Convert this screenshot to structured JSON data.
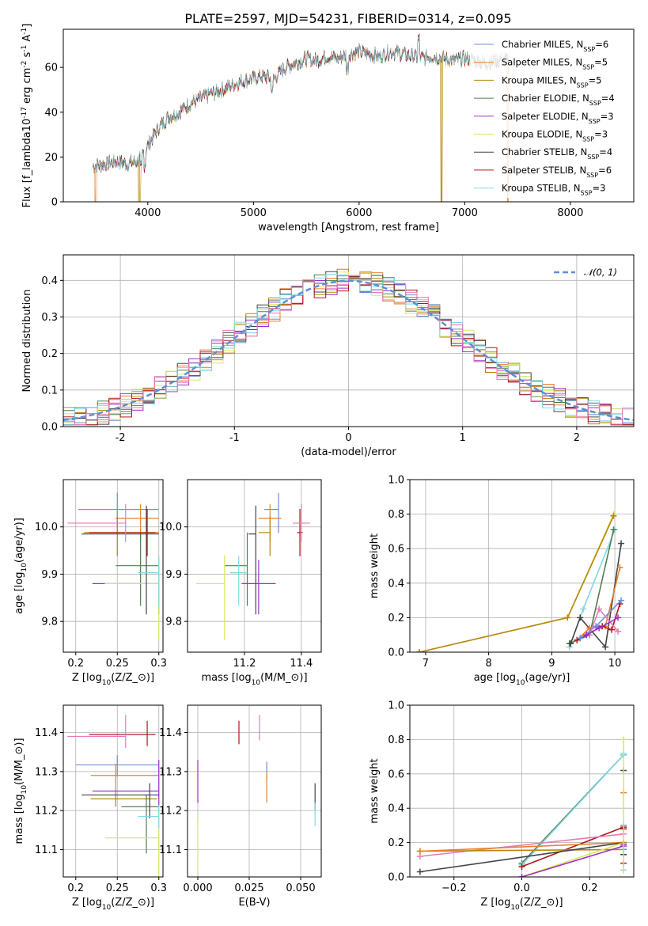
{
  "figure_title": "PLATE=2597, MJD=54231, FIBERID=0314, z=0.095",
  "colors": {
    "Chabrier MILES": "#6a8fd8",
    "Salpeter MILES": "#e8822a",
    "Kroupa MILES": "#b8860b",
    "Chabrier ELODIE": "#4f7f4f",
    "Salpeter ELODIE": "#9b30c8",
    "Kroupa ELODIE": "#d8e860",
    "Chabrier STELIB": "#444444",
    "Salpeter STELIB": "#b01818",
    "Kroupa STELIB": "#80d8e8",
    "extra_pink": "#e87ab8",
    "normal_curve": "#5b8fd8"
  },
  "chart_data": [
    {
      "id": "spectrum",
      "type": "line",
      "title": "PLATE=2597, MJD=54231, FIBERID=0314, z=0.095",
      "xlabel": "wavelength [Angstrom, rest frame]",
      "ylabel": "Flux [f$_\\lambda$10$^{-17}$ erg cm$^{-2}$ s$^{-1}$ A$^{-1}$]",
      "xlim": [
        3200,
        8600
      ],
      "ylim": [
        0,
        77
      ],
      "xticks": [
        4000,
        5000,
        6000,
        7000,
        8000
      ],
      "yticks": [
        0,
        20,
        40,
        60
      ],
      "legend_position": "upper right",
      "legend": [
        "Chabrier MILES, N_SSP=6",
        "Salpeter MILES, N_SSP=5",
        "Kroupa MILES, N_SSP=5",
        "Chabrier ELODIE, N_SSP=4",
        "Salpeter ELODIE, N_SSP=3",
        "Kroupa ELODIE, N_SSP=3",
        "Chabrier STELIB, N_SSP=4",
        "Salpeter STELIB, N_SSP=6",
        "Kroupa STELIB, N_SSP=3"
      ],
      "continuum": {
        "wavelength": [
          3500,
          3600,
          3700,
          3800,
          3900,
          4000,
          4100,
          4200,
          4300,
          4400,
          4500,
          4600,
          4700,
          4800,
          4900,
          5000,
          5100,
          5200,
          5300,
          5400,
          5500,
          5600,
          5700,
          5800,
          5900,
          6000,
          6100,
          6200,
          6300,
          6400,
          6500,
          6600,
          6700,
          6800,
          6900,
          7000,
          7100,
          7200,
          7300,
          7400
        ],
        "flux": [
          16,
          17,
          18,
          17,
          18,
          25,
          33,
          38,
          40,
          44,
          46,
          48,
          50,
          52,
          54,
          55,
          56,
          55,
          60,
          62,
          64,
          63,
          65,
          64,
          66,
          67,
          66,
          65,
          67,
          66,
          65,
          64,
          65,
          64,
          63,
          64,
          63,
          62,
          63,
          64
        ]
      },
      "dropouts": [
        {
          "series": "Salpeter MILES",
          "wavelength": [
            3500,
            3520
          ]
        },
        {
          "series": "Kroupa MILES",
          "wavelength": [
            3910,
            3930
          ]
        },
        {
          "series": "Kroupa MILES",
          "wavelength": [
            6770,
            6790
          ]
        },
        {
          "series": "Salpeter MILES",
          "wavelength": [
            7400,
            7420
          ]
        }
      ]
    },
    {
      "id": "residuals",
      "type": "line",
      "xlabel": "(data-model)/error",
      "ylabel": "Normed distribution",
      "xlim": [
        -2.5,
        2.5
      ],
      "ylim": [
        0,
        0.47
      ],
      "xticks": [
        -2,
        -1,
        0,
        1,
        2
      ],
      "yticks": [
        0.0,
        0.1,
        0.2,
        0.3,
        0.4
      ],
      "legend": [
        "$\\mathcal{N}(0,1)$"
      ],
      "legend_position": "upper right",
      "normal_curve": "standard normal pdf, dashed",
      "histogram_bin_width": 0.1
    },
    {
      "id": "age_vs_Z",
      "type": "scatter",
      "xlabel": "Z [log$_{10}$($Z/Z_\\odot$)]",
      "ylabel": "age  [log$_{10}$($age/yr$)]",
      "xlim": [
        0.185,
        0.305
      ],
      "ylim": [
        9.735,
        10.1
      ],
      "xticks": [
        0.2,
        0.25,
        0.3
      ],
      "yticks": [
        9.8,
        9.9,
        10.0
      ],
      "points": [
        {
          "series": "Chabrier MILES",
          "x": 0.25,
          "xerr": [
            0.047,
            0.05
          ],
          "y": 10.037,
          "yerr": [
            0.05,
            0.035
          ]
        },
        {
          "series": "Salpeter MILES",
          "x": 0.278,
          "xerr": [
            0.03,
            0.022
          ],
          "y": 10.018,
          "yerr": [
            0.05,
            0.03
          ]
        },
        {
          "series": "Kroupa MILES",
          "x": 0.25,
          "xerr": [
            0.04,
            0.05
          ],
          "y": 9.988,
          "yerr": [
            0.05,
            0.035
          ]
        },
        {
          "series": "Chabrier ELODIE",
          "x": 0.278,
          "xerr": [
            0.03,
            0.022
          ],
          "y": 9.918,
          "yerr": [
            0.085,
            0.07
          ]
        },
        {
          "series": "Salpeter ELODIE",
          "x": 0.3,
          "xerr": [
            0.08,
            0.0
          ],
          "y": 9.88,
          "yerr": [
            0.065,
            0.05
          ]
        },
        {
          "series": "Kroupa ELODIE",
          "x": 0.3,
          "xerr": [
            0.065,
            0.0
          ],
          "y": 9.88,
          "yerr": [
            0.12,
            0.06
          ]
        },
        {
          "series": "Chabrier STELIB",
          "x": 0.285,
          "xerr": [
            0.078,
            0.015
          ],
          "y": 9.985,
          "yerr": [
            0.17,
            0.06
          ]
        },
        {
          "series": "Salpeter STELIB",
          "x": 0.286,
          "xerr": [
            0.07,
            0.01
          ],
          "y": 9.988,
          "yerr": [
            0.05,
            0.05
          ]
        },
        {
          "series": "Kroupa STELIB",
          "x": 0.3,
          "xerr": [
            0.025,
            0.0
          ],
          "y": 9.903,
          "yerr": [
            0.07,
            0.035
          ]
        },
        {
          "series": "extra_pink",
          "x": 0.26,
          "xerr": [
            0.07,
            0.0
          ],
          "y": 10.008,
          "yerr": [
            0.04,
            0.04
          ]
        }
      ]
    },
    {
      "id": "age_vs_mass",
      "type": "scatter",
      "xlabel": "mass [log$_{10}$($M/M_\\odot$)]",
      "xlim": [
        11.0,
        11.47
      ],
      "ylim": [
        9.735,
        10.1
      ],
      "xticks": [
        11.2,
        11.4
      ],
      "yticks": [
        9.8,
        9.9,
        10.0
      ],
      "points": [
        {
          "series": "Chabrier MILES",
          "x": 11.32,
          "xerr": [
            0.05,
            0.0
          ],
          "y": 10.037,
          "yerr": [
            0.05,
            0.035
          ]
        },
        {
          "series": "Salpeter MILES",
          "x": 11.29,
          "xerr": [
            0.04,
            0.04
          ],
          "y": 10.018,
          "yerr": [
            0.05,
            0.03
          ]
        },
        {
          "series": "Kroupa MILES",
          "x": 11.29,
          "xerr": [
            0.04,
            0.0
          ],
          "y": 9.988,
          "yerr": [
            0.05,
            0.035
          ]
        },
        {
          "series": "Chabrier ELODIE",
          "x": 11.21,
          "xerr": [
            0.08,
            0.0
          ],
          "y": 9.918,
          "yerr": [
            0.085,
            0.07
          ]
        },
        {
          "series": "Salpeter ELODIE",
          "x": 11.25,
          "xerr": [
            0.06,
            0.06
          ],
          "y": 9.88,
          "yerr": [
            0.065,
            0.05
          ]
        },
        {
          "series": "Kroupa ELODIE",
          "x": 11.13,
          "xerr": [
            0.1,
            0.0
          ],
          "y": 9.88,
          "yerr": [
            0.12,
            0.06
          ]
        },
        {
          "series": "Chabrier STELIB",
          "x": 11.24,
          "xerr": [
            0.025,
            0.0
          ],
          "y": 9.985,
          "yerr": [
            0.17,
            0.06
          ]
        },
        {
          "series": "Salpeter STELIB",
          "x": 11.395,
          "xerr": [
            0.01,
            0.01
          ],
          "y": 9.988,
          "yerr": [
            0.05,
            0.05
          ]
        },
        {
          "series": "Kroupa STELIB",
          "x": 11.18,
          "xerr": [
            0.03,
            0.03
          ],
          "y": 9.903,
          "yerr": [
            0.07,
            0.035
          ]
        },
        {
          "series": "extra_pink",
          "x": 11.4,
          "xerr": [
            0.03,
            0.03
          ],
          "y": 10.008,
          "yerr": [
            0.04,
            0.04
          ]
        }
      ]
    },
    {
      "id": "weight_vs_age",
      "type": "line",
      "xlabel": "age  [log$_{10}$($age/yr$)]",
      "ylabel": "mass weight",
      "xlim": [
        6.75,
        10.3
      ],
      "ylim": [
        0,
        1.0
      ],
      "xticks": [
        7,
        8,
        9,
        10
      ],
      "yticks": [
        0.0,
        0.2,
        0.4,
        0.6,
        0.8,
        1.0
      ],
      "series": [
        {
          "name": "Kroupa ELODIE",
          "x": [
            6.9,
            9.25,
            9.98
          ],
          "y": [
            0.0,
            0.2,
            0.8
          ]
        },
        {
          "name": "Kroupa MILES",
          "x": [
            6.9,
            9.25,
            9.98
          ],
          "y": [
            0.0,
            0.2,
            0.79
          ]
        },
        {
          "name": "Kroupa STELIB",
          "x": [
            9.28,
            9.5,
            10.0
          ],
          "y": [
            0.03,
            0.25,
            0.71
          ]
        },
        {
          "name": "Chabrier ELODIE",
          "x": [
            9.28,
            9.6,
            9.98
          ],
          "y": [
            0.05,
            0.1,
            0.71
          ]
        },
        {
          "name": "Chabrier STELIB",
          "x": [
            9.3,
            9.45,
            9.85,
            10.1
          ],
          "y": [
            0.05,
            0.2,
            0.03,
            0.63
          ]
        },
        {
          "name": "Salpeter MILES",
          "x": [
            9.4,
            9.6,
            9.85,
            10.08
          ],
          "y": [
            0.07,
            0.14,
            0.15,
            0.49
          ]
        },
        {
          "name": "Salpeter STELIB",
          "x": [
            9.4,
            9.8,
            9.95,
            10.08
          ],
          "y": [
            0.07,
            0.15,
            0.13,
            0.28
          ]
        },
        {
          "name": "Chabrier MILES",
          "x": [
            9.45,
            9.7,
            10.1
          ],
          "y": [
            0.08,
            0.15,
            0.3
          ]
        },
        {
          "name": "extra_pink",
          "x": [
            9.6,
            9.75,
            10.05
          ],
          "y": [
            0.1,
            0.25,
            0.12
          ]
        },
        {
          "name": "Salpeter ELODIE",
          "x": [
            9.55,
            9.75,
            10.05
          ],
          "y": [
            0.1,
            0.14,
            0.2
          ]
        }
      ]
    },
    {
      "id": "mass_vs_Z",
      "type": "scatter",
      "xlabel": "Z [log$_{10}$($Z/Z_\\odot$)]",
      "ylabel": "mass [log$_{10}$($M/M_\\odot$)]",
      "xlim": [
        0.185,
        0.305
      ],
      "ylim": [
        11.03,
        11.47
      ],
      "xticks": [
        0.2,
        0.25,
        0.3
      ],
      "yticks": [
        11.1,
        11.2,
        11.3,
        11.4
      ],
      "points": [
        {
          "series": "Chabrier MILES",
          "x": 0.25,
          "xerr": [
            0.05,
            0.05
          ],
          "y": 11.317,
          "yerr": [
            0.03,
            0.025
          ]
        },
        {
          "series": "Salpeter MILES",
          "x": 0.248,
          "xerr": [
            0.03,
            0.052
          ],
          "y": 11.29,
          "yerr": [
            0.04,
            0.03
          ]
        },
        {
          "series": "Kroupa MILES",
          "x": 0.248,
          "xerr": [
            0.03,
            0.05
          ],
          "y": 11.23,
          "yerr": [
            0.02,
            0.02
          ]
        },
        {
          "series": "Chabrier ELODIE",
          "x": 0.285,
          "xerr": [
            0.03,
            0.015
          ],
          "y": 11.21,
          "yerr": [
            0.12,
            0.03
          ]
        },
        {
          "series": "Salpeter ELODIE",
          "x": 0.3,
          "xerr": [
            0.08,
            0.0
          ],
          "y": 11.25,
          "yerr": [
            0.04,
            0.08
          ]
        },
        {
          "series": "Kroupa ELODIE",
          "x": 0.3,
          "xerr": [
            0.065,
            0.0
          ],
          "y": 11.13,
          "yerr": [
            0.12,
            0.08
          ]
        },
        {
          "series": "Chabrier STELIB",
          "x": 0.289,
          "xerr": [
            0.082,
            0.011
          ],
          "y": 11.24,
          "yerr": [
            0.06,
            0.03
          ]
        },
        {
          "series": "Salpeter STELIB",
          "x": 0.286,
          "xerr": [
            0.07,
            0.01
          ],
          "y": 11.395,
          "yerr": [
            0.03,
            0.035
          ]
        },
        {
          "series": "Kroupa STELIB",
          "x": 0.3,
          "xerr": [
            0.025,
            0.0
          ],
          "y": 11.185,
          "yerr": [
            0.03,
            0.03
          ]
        },
        {
          "series": "extra_pink",
          "x": 0.26,
          "xerr": [
            0.07,
            0.0
          ],
          "y": 11.39,
          "yerr": [
            0.03,
            0.055
          ]
        }
      ]
    },
    {
      "id": "mass_vs_ebv",
      "type": "scatter",
      "xlabel": "E(B-V)",
      "xlim": [
        -0.005,
        0.06
      ],
      "ylim": [
        11.03,
        11.47
      ],
      "xticks": [
        0.0,
        0.025,
        0.05
      ],
      "xticklabels": [
        "0.000",
        "0.025",
        "0.050"
      ],
      "yticks": [
        11.1,
        11.2,
        11.3,
        11.4
      ],
      "points": [
        {
          "series": "Chabrier MILES",
          "x": 0.0335,
          "y": 11.3,
          "yerr": [
            0.02,
            0.025
          ]
        },
        {
          "series": "Salpeter MILES",
          "x": 0.0335,
          "y": 11.26,
          "yerr": [
            0.04,
            0.04
          ]
        },
        {
          "series": "Salpeter STELIB",
          "x": 0.02,
          "y": 11.4,
          "yerr": [
            0.03,
            0.03
          ]
        },
        {
          "series": "extra_pink",
          "x": 0.03,
          "y": 11.41,
          "yerr": [
            0.03,
            0.035
          ]
        },
        {
          "series": "Salpeter ELODIE",
          "x": 0.0,
          "y": 11.27,
          "yerr": [
            0.05,
            0.06
          ]
        },
        {
          "series": "Kroupa ELODIE",
          "x": 0.0,
          "y": 11.12,
          "yerr": [
            0.08,
            0.06
          ]
        },
        {
          "series": "Chabrier STELIB",
          "x": 0.057,
          "y": 11.24,
          "yerr": [
            0.04,
            0.03
          ]
        },
        {
          "series": "Kroupa STELIB",
          "x": 0.057,
          "y": 11.19,
          "yerr": [
            0.03,
            0.03
          ]
        }
      ]
    },
    {
      "id": "weight_vs_Z",
      "type": "line",
      "xlabel": "Z [log$_{10}$($Z/Z_\\odot$)]",
      "ylabel": "mass weight",
      "xlim": [
        -0.33,
        0.33
      ],
      "ylim": [
        0,
        1.0
      ],
      "xticks": [
        -0.2,
        0.0,
        0.2
      ],
      "xticklabels": [
        "−0.2",
        "0.0",
        "0.2"
      ],
      "yticks": [
        0.0,
        0.2,
        0.4,
        0.6,
        0.8,
        1.0
      ],
      "series": [
        {
          "name": "Chabrier ELODIE",
          "x": [
            0.0,
            0.3
          ],
          "y": [
            0.08,
            0.71
          ]
        },
        {
          "name": "Kroupa STELIB",
          "x": [
            0.0,
            0.3
          ],
          "y": [
            0.07,
            0.71
          ]
        },
        {
          "name": "Salpeter STELIB",
          "x": [
            0.0,
            0.3
          ],
          "y": [
            0.06,
            0.29
          ]
        },
        {
          "name": "extra_pink",
          "x": [
            -0.3,
            0.3
          ],
          "y": [
            0.12,
            0.25
          ]
        },
        {
          "name": "Kroupa MILES",
          "x": [
            -0.3,
            0.3
          ],
          "y": [
            0.15,
            0.16
          ]
        },
        {
          "name": "Salpeter MILES",
          "x": [
            -0.3,
            0.3
          ],
          "y": [
            0.15,
            0.2
          ]
        },
        {
          "name": "Chabrier STELIB",
          "x": [
            -0.3,
            0.3
          ],
          "y": [
            0.03,
            0.2
          ]
        },
        {
          "name": "Kroupa ELODIE",
          "x": [
            0.0,
            0.3
          ],
          "y": [
            0.0,
            0.2
          ]
        },
        {
          "name": "Salpeter ELODIE",
          "x": [
            0.0,
            0.3
          ],
          "y": [
            0.0,
            0.18
          ]
        }
      ],
      "markers_at_x": 0.3,
      "marker_values": [
        0.8,
        0.72,
        0.62,
        0.49,
        0.3,
        0.28,
        0.25,
        0.2,
        0.19,
        0.16,
        0.13,
        0.08,
        0.04
      ]
    }
  ]
}
